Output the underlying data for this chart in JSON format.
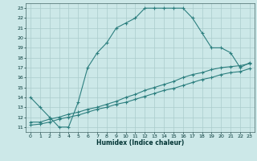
{
  "xlabel": "Humidex (Indice chaleur)",
  "bg_color": "#cce8e8",
  "grid_color": "#aacccc",
  "line_color": "#2d7f7f",
  "xlim": [
    -0.5,
    23.5
  ],
  "ylim": [
    10.5,
    23.5
  ],
  "xticks": [
    0,
    1,
    2,
    3,
    4,
    5,
    6,
    7,
    8,
    9,
    10,
    11,
    12,
    13,
    14,
    15,
    16,
    17,
    18,
    19,
    20,
    21,
    22,
    23
  ],
  "yticks": [
    11,
    12,
    13,
    14,
    15,
    16,
    17,
    18,
    19,
    20,
    21,
    22,
    23
  ],
  "line1_x": [
    0,
    1,
    2,
    3,
    4,
    5,
    6,
    7,
    8,
    9,
    10,
    11,
    12,
    13,
    14,
    15,
    16,
    17,
    18,
    19,
    20,
    21,
    22,
    23
  ],
  "line1_y": [
    14,
    13,
    12,
    11,
    11,
    13.5,
    17,
    18.5,
    19.5,
    21,
    21.5,
    22,
    23,
    23,
    23,
    23,
    23,
    22,
    20.5,
    19,
    19,
    18.5,
    17,
    17.5
  ],
  "line2_x": [
    0,
    1,
    2,
    3,
    4,
    5,
    6,
    7,
    8,
    9,
    10,
    11,
    12,
    13,
    14,
    15,
    16,
    17,
    18,
    19,
    20,
    21,
    22,
    23
  ],
  "line2_y": [
    11.5,
    11.5,
    11.8,
    12.0,
    12.3,
    12.5,
    12.8,
    13.0,
    13.3,
    13.6,
    14.0,
    14.3,
    14.7,
    15.0,
    15.3,
    15.6,
    16.0,
    16.3,
    16.5,
    16.8,
    17.0,
    17.1,
    17.2,
    17.4
  ],
  "line3_x": [
    0,
    1,
    2,
    3,
    4,
    5,
    6,
    7,
    8,
    9,
    10,
    11,
    12,
    13,
    14,
    15,
    16,
    17,
    18,
    19,
    20,
    21,
    22,
    23
  ],
  "line3_y": [
    11.2,
    11.3,
    11.5,
    11.8,
    12.0,
    12.2,
    12.5,
    12.8,
    13.0,
    13.3,
    13.5,
    13.8,
    14.1,
    14.4,
    14.7,
    14.9,
    15.2,
    15.5,
    15.8,
    16.0,
    16.3,
    16.5,
    16.6,
    16.9
  ]
}
